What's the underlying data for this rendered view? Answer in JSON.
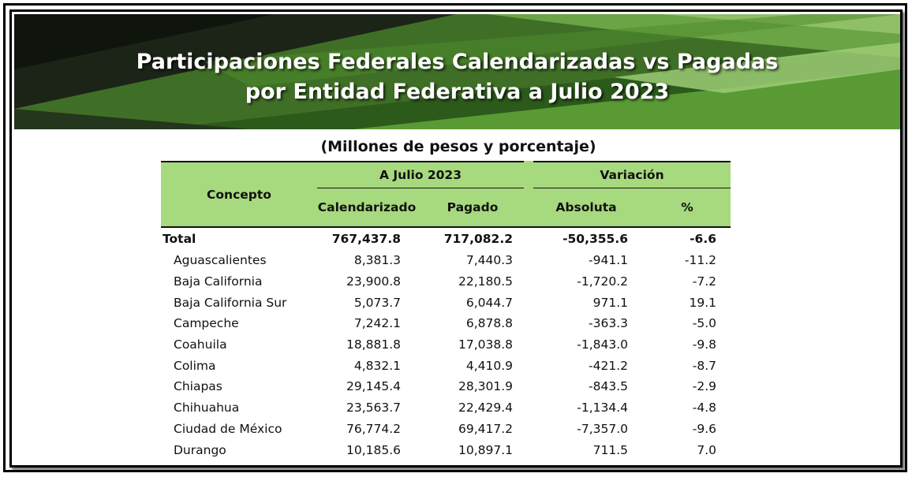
{
  "title": {
    "line1": "Participaciones Federales Calendarizadas vs Pagadas",
    "line2": "por Entidad Federativa a Julio 2023"
  },
  "subtitle": "(Millones de pesos y porcentaje)",
  "colors": {
    "banner_dark": "#1e2a1a",
    "banner_green": "#4e8a2c",
    "banner_light": "#8fbf66",
    "header_fill": "#a7d97e"
  },
  "table": {
    "headers": {
      "concepto": "Concepto",
      "group_period": "A Julio 2023",
      "group_variation": "Variación",
      "calendarizado": "Calendarizado",
      "pagado": "Pagado",
      "absoluta": "Absoluta",
      "pct": "%"
    },
    "total": {
      "name": "Total",
      "calendarizado": "767,437.8",
      "pagado": "717,082.2",
      "absoluta": "-50,355.6",
      "pct": "-6.6"
    },
    "rows": [
      {
        "name": "Aguascalientes",
        "calendarizado": "8,381.3",
        "pagado": "7,440.3",
        "absoluta": "-941.1",
        "pct": "-11.2"
      },
      {
        "name": "Baja California",
        "calendarizado": "23,900.8",
        "pagado": "22,180.5",
        "absoluta": "-1,720.2",
        "pct": "-7.2"
      },
      {
        "name": "Baja California Sur",
        "calendarizado": "5,073.7",
        "pagado": "6,044.7",
        "absoluta": "971.1",
        "pct": "19.1"
      },
      {
        "name": "Campeche",
        "calendarizado": "7,242.1",
        "pagado": "6,878.8",
        "absoluta": "-363.3",
        "pct": "-5.0"
      },
      {
        "name": "Coahuila",
        "calendarizado": "18,881.8",
        "pagado": "17,038.8",
        "absoluta": "-1,843.0",
        "pct": "-9.8"
      },
      {
        "name": "Colima",
        "calendarizado": "4,832.1",
        "pagado": "4,410.9",
        "absoluta": "-421.2",
        "pct": "-8.7"
      },
      {
        "name": "Chiapas",
        "calendarizado": "29,145.4",
        "pagado": "28,301.9",
        "absoluta": "-843.5",
        "pct": "-2.9"
      },
      {
        "name": "Chihuahua",
        "calendarizado": "23,563.7",
        "pagado": "22,429.4",
        "absoluta": "-1,134.4",
        "pct": "-4.8"
      },
      {
        "name": "Ciudad de México",
        "calendarizado": "76,774.2",
        "pagado": "69,417.2",
        "absoluta": "-7,357.0",
        "pct": "-9.6"
      },
      {
        "name": "Durango",
        "calendarizado": "10,185.6",
        "pagado": "10,897.1",
        "absoluta": "711.5",
        "pct": "7.0"
      }
    ]
  }
}
